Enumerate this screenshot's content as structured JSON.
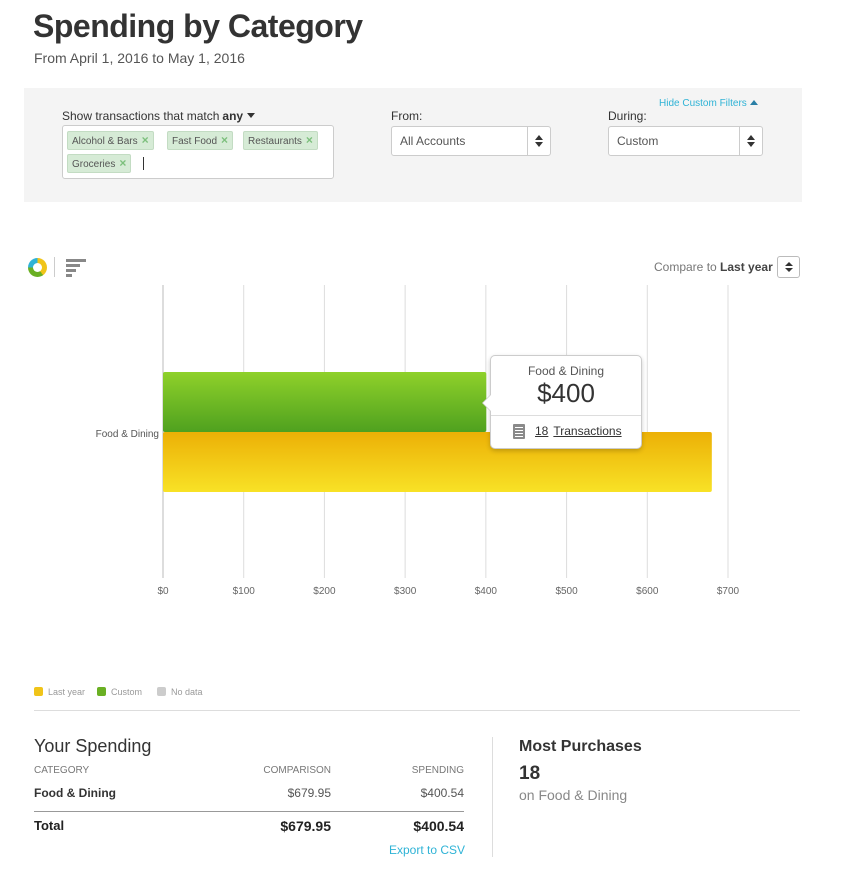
{
  "header": {
    "title": "Spending by Category",
    "subtitle": "From April 1, 2016 to May 1, 2016"
  },
  "filters": {
    "hide_label": "Hide Custom Filters",
    "match_prefix": "Show transactions that match",
    "match_mode": "any",
    "tags": [
      "Alcohol & Bars",
      "Fast Food",
      "Restaurants",
      "Groceries"
    ],
    "from_label": "From:",
    "from_value": "All Accounts",
    "during_label": "During:",
    "during_value": "Custom"
  },
  "compare": {
    "prefix": "Compare to",
    "value": "Last year"
  },
  "colors": {
    "custom": "#6ab023",
    "last_year": "#f0c419",
    "no_data": "#cccccc",
    "accent": "#2fb3d6"
  },
  "chart_data": {
    "type": "bar",
    "orientation": "horizontal",
    "categories": [
      "Food & Dining"
    ],
    "series": [
      {
        "name": "Custom",
        "values": [
          400.54
        ]
      },
      {
        "name": "Last year",
        "values": [
          679.95
        ]
      }
    ],
    "x_ticks": [
      "$0",
      "$100",
      "$200",
      "$300",
      "$400",
      "$500",
      "$600",
      "$700"
    ],
    "xlim": [
      0,
      700
    ],
    "grid": true
  },
  "tooltip": {
    "category": "Food & Dining",
    "amount": "$400",
    "transactions_count": "18",
    "transactions_label": "Transactions"
  },
  "legend": [
    {
      "label": "Last year",
      "color": "#f0c419"
    },
    {
      "label": "Custom",
      "color": "#6ab023"
    },
    {
      "label": "No data",
      "color": "#cccccc"
    }
  ],
  "spending": {
    "title": "Your Spending",
    "columns": [
      "CATEGORY",
      "COMPARISON",
      "SPENDING"
    ],
    "rows": [
      {
        "category": "Food & Dining",
        "comparison": "$679.95",
        "spending": "$400.54"
      }
    ],
    "total": {
      "label": "Total",
      "comparison": "$679.95",
      "spending": "$400.54"
    },
    "export_label": "Export to CSV"
  },
  "most_purchases": {
    "title": "Most Purchases",
    "count": "18",
    "subtitle": "on Food & Dining"
  }
}
